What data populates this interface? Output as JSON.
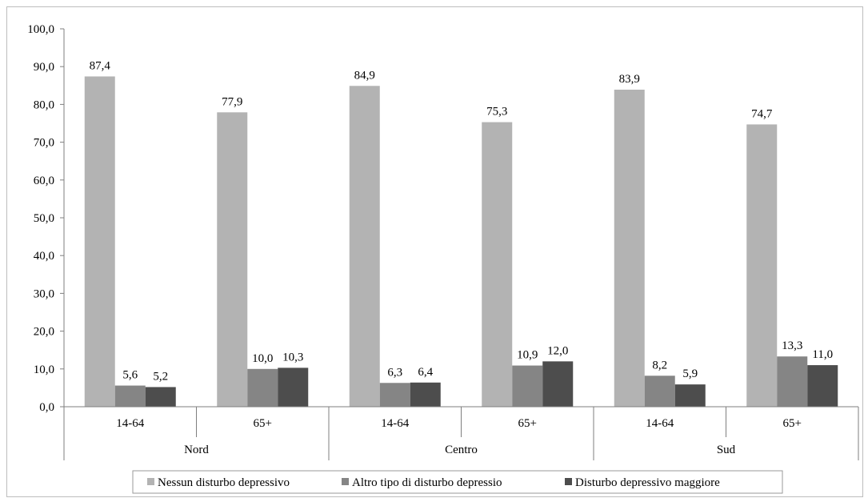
{
  "chart_data": {
    "type": "bar",
    "groups": [
      {
        "name": "Nord",
        "categories": [
          "14-64",
          "65+"
        ]
      },
      {
        "name": "Centro",
        "categories": [
          "14-64",
          "65+"
        ]
      },
      {
        "name": "Sud",
        "categories": [
          "14-64",
          "65+"
        ]
      }
    ],
    "categories": [
      "14-64",
      "65+",
      "14-64",
      "65+",
      "14-64",
      "65+"
    ],
    "series": [
      {
        "name": "Nessun disturbo depressivo",
        "color": "#b3b3b3",
        "values": [
          87.4,
          77.9,
          84.9,
          75.3,
          83.9,
          74.7
        ],
        "labels": [
          "87,4",
          "77,9",
          "84,9",
          "75,3",
          "83,9",
          "74,7"
        ]
      },
      {
        "name": "Altro tipo di disturbo depressio",
        "color": "#858585",
        "values": [
          5.6,
          10.0,
          6.3,
          10.9,
          8.2,
          13.3
        ],
        "labels": [
          "5,6",
          "10,0",
          "6,3",
          "10,9",
          "8,2",
          "13,3"
        ]
      },
      {
        "name": "Disturbo depressivo maggiore",
        "color": "#4d4d4d",
        "values": [
          5.2,
          10.3,
          6.4,
          12.0,
          5.9,
          11.0
        ],
        "labels": [
          "5,2",
          "10,3",
          "6,4",
          "12,0",
          "5,9",
          "11,0"
        ]
      }
    ],
    "yticks": [
      "0,0",
      "10,0",
      "20,0",
      "30,0",
      "40,0",
      "50,0",
      "60,0",
      "70,0",
      "80,0",
      "90,0",
      "100,0"
    ],
    "ylim": [
      0,
      100
    ],
    "grid": false,
    "legend_position": "bottom"
  }
}
